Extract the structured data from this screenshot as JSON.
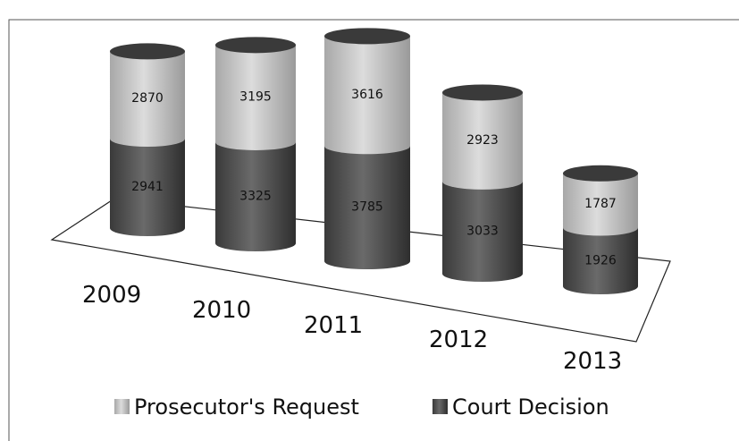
{
  "chart_data": {
    "type": "bar",
    "stacked": true,
    "categories": [
      "2009",
      "2010",
      "2011",
      "2012",
      "2013"
    ],
    "series": [
      {
        "name": "Court Decision",
        "color": "#4a4a4a",
        "values": [
          2941,
          3325,
          3785,
          3033,
          1926
        ]
      },
      {
        "name": "Prosecutor's Request",
        "color": "#bdbdbd",
        "values": [
          2870,
          3195,
          3616,
          2923,
          1787
        ]
      }
    ]
  }
}
